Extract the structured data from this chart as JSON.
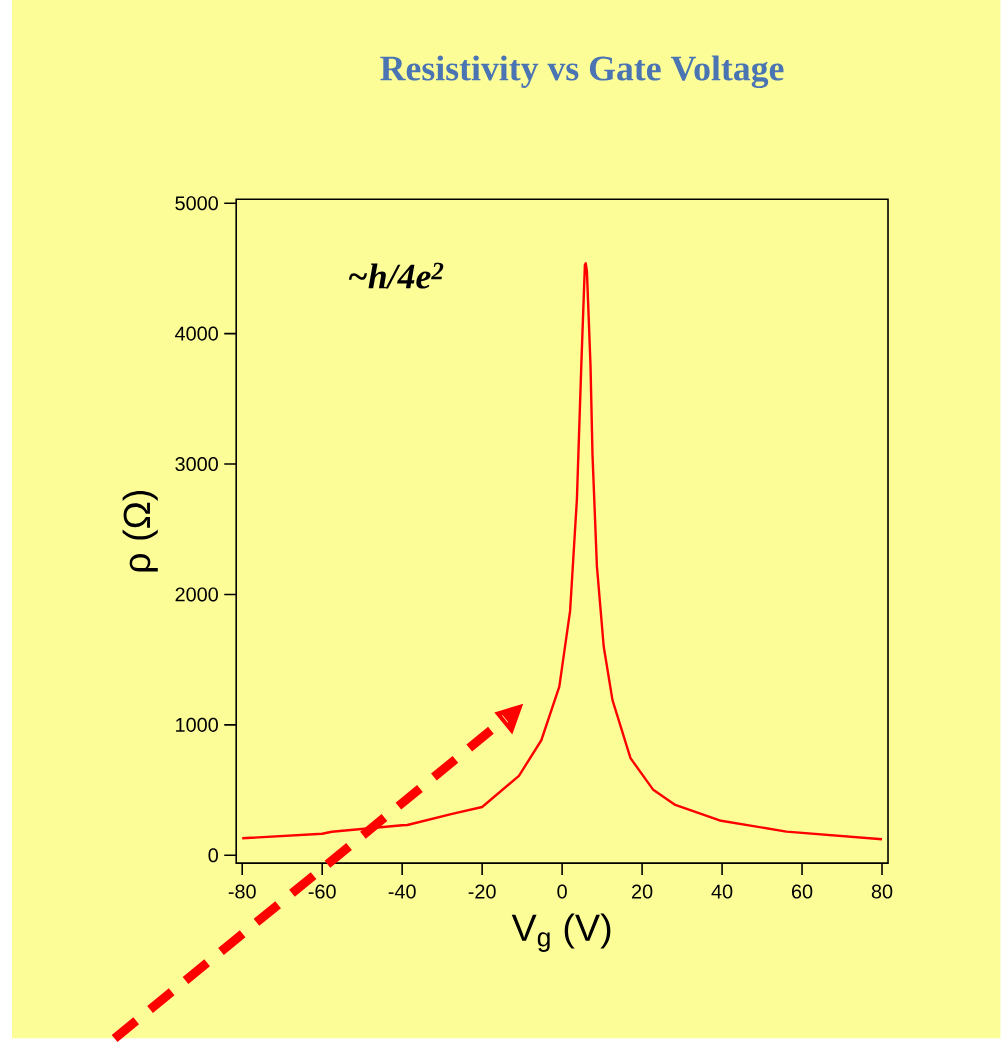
{
  "chart_data": {
    "type": "line",
    "title": "Resistivity vs Gate Voltage",
    "xlabel": "V$_{g}$ (V)",
    "ylabel": "ρ (Ω)",
    "annotations": [
      "~h/4e$^{2}$"
    ],
    "x": [
      -80,
      -60,
      -57.6,
      -40,
      -38.7,
      -27.5,
      -20,
      -10.8,
      -5.2,
      -0.7,
      2.0,
      3.7,
      4.8,
      5.7,
      5.9,
      6.2,
      7.1,
      7.6,
      8.7,
      10.4,
      12.6,
      17.1,
      22.7,
      28.3,
      39.4,
      56.1,
      80
    ],
    "series": [
      {
        "color": "#ff0000",
        "values": [
          130,
          165,
          180,
          230,
          232,
          318,
          370,
          609,
          882,
          1293,
          1874,
          2730,
          3757,
          4527,
          4540,
          4480,
          3757,
          3072,
          2217,
          1601,
          1190,
          745,
          505,
          386,
          267,
          181,
          123
        ]
      }
    ],
    "xlim": [
      -81.5,
      81.5
    ],
    "ylim": [
      -60,
      5030
    ],
    "xticks": [
      -80,
      -60,
      -40,
      -20,
      0,
      20,
      40,
      60,
      80
    ],
    "yticks": [
      0,
      1000,
      2000,
      3000,
      4000,
      5000
    ],
    "marker": "none",
    "line_style": "solid"
  }
}
